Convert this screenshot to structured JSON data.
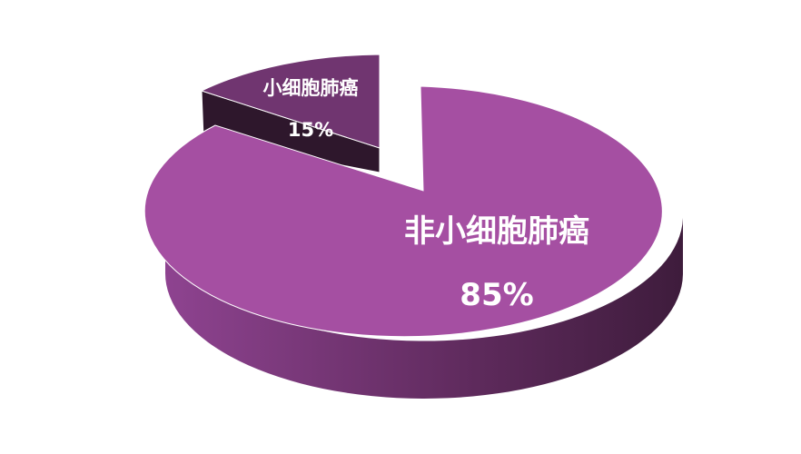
{
  "chart_data": {
    "type": "pie",
    "style": "3d-exploded",
    "slices": [
      {
        "label": "非小细胞肺癌",
        "value": 85,
        "value_label": "85%",
        "color": "#a54fa2"
      },
      {
        "label": "小细胞肺癌",
        "value": 15,
        "value_label": "15%",
        "color": "#703570"
      }
    ],
    "side_colors": {
      "light": "#8e4390",
      "dark": "#3e1c3c",
      "small_cut": "#2e172c"
    }
  }
}
